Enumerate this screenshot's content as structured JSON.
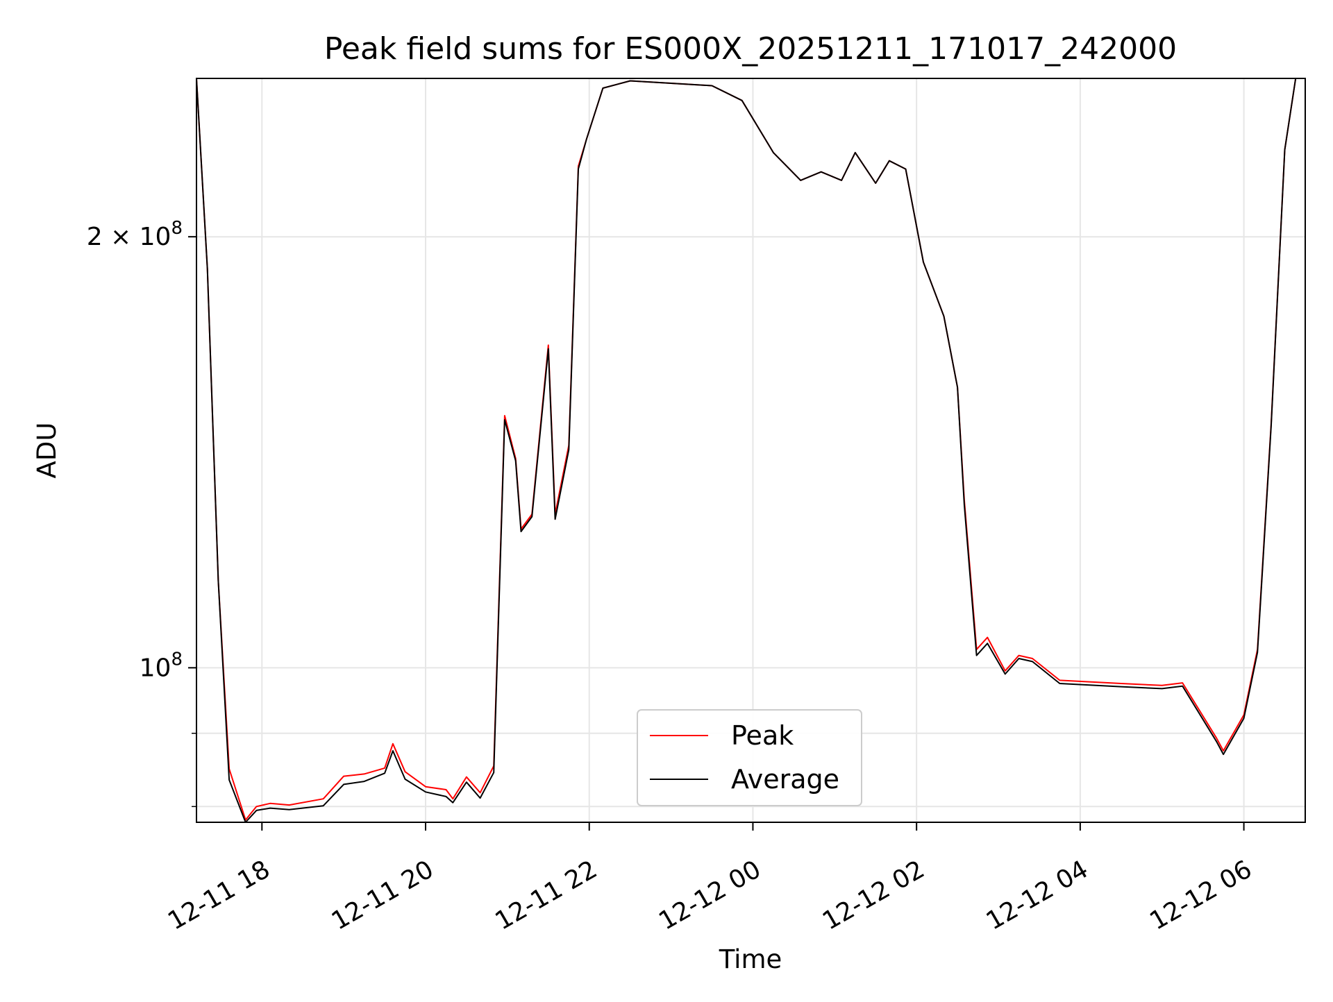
{
  "chart_data": {
    "type": "line",
    "title": "Peak field sums for ES000X_20251211_171017_242000",
    "xlabel": "Time",
    "ylabel": "ADU",
    "y_scale": "log",
    "ylim": [
      78000000,
      258000000
    ],
    "xlim": [
      "2025-12-11T17:12",
      "2025-12-12T06:45"
    ],
    "grid": true,
    "legend_position": "lower-center",
    "x_ticks": [
      {
        "value": "2025-12-11T18:00",
        "label": "12-11 18"
      },
      {
        "value": "2025-12-11T20:00",
        "label": "12-11 20"
      },
      {
        "value": "2025-12-11T22:00",
        "label": "12-11 22"
      },
      {
        "value": "2025-12-12T00:00",
        "label": "12-12 00"
      },
      {
        "value": "2025-12-12T02:00",
        "label": "12-12 02"
      },
      {
        "value": "2025-12-12T04:00",
        "label": "12-12 04"
      },
      {
        "value": "2025-12-12T06:00",
        "label": "12-12 06"
      }
    ],
    "y_ticks_major": [
      {
        "value": 100000000,
        "base": "10",
        "exp": "8",
        "mantissa": ""
      },
      {
        "value": 200000000,
        "base": "10",
        "exp": "8",
        "mantissa": "2 × "
      }
    ],
    "y_ticks_minor": [
      80000000,
      90000000
    ],
    "x": [
      "2025-12-11T17:12",
      "2025-12-11T17:20",
      "2025-12-11T17:28",
      "2025-12-11T17:36",
      "2025-12-11T17:48",
      "2025-12-11T17:56",
      "2025-12-11T18:06",
      "2025-12-11T18:20",
      "2025-12-11T18:45",
      "2025-12-11T19:00",
      "2025-12-11T19:15",
      "2025-12-11T19:30",
      "2025-12-11T19:36",
      "2025-12-11T19:45",
      "2025-12-11T20:00",
      "2025-12-11T20:15",
      "2025-12-11T20:20",
      "2025-12-11T20:30",
      "2025-12-11T20:40",
      "2025-12-11T20:50",
      "2025-12-11T20:58",
      "2025-12-11T21:06",
      "2025-12-11T21:10",
      "2025-12-11T21:18",
      "2025-12-11T21:30",
      "2025-12-11T21:35",
      "2025-12-11T21:45",
      "2025-12-11T21:52",
      "2025-12-11T21:58",
      "2025-12-11T22:10",
      "2025-12-11T22:30",
      "2025-12-11T23:00",
      "2025-12-11T23:30",
      "2025-12-11T23:52",
      "2025-12-12T00:15",
      "2025-12-12T00:35",
      "2025-12-12T00:50",
      "2025-12-12T01:05",
      "2025-12-12T01:15",
      "2025-12-12T01:30",
      "2025-12-12T01:40",
      "2025-12-12T01:52",
      "2025-12-12T02:05",
      "2025-12-12T02:20",
      "2025-12-12T02:30",
      "2025-12-12T02:35",
      "2025-12-12T02:44",
      "2025-12-12T02:52",
      "2025-12-12T03:05",
      "2025-12-12T03:15",
      "2025-12-12T03:25",
      "2025-12-12T03:45",
      "2025-12-12T04:30",
      "2025-12-12T05:00",
      "2025-12-12T05:15",
      "2025-12-12T05:40",
      "2025-12-12T05:45",
      "2025-12-12T06:00",
      "2025-12-12T06:10",
      "2025-12-12T06:20",
      "2025-12-12T06:30",
      "2025-12-12T06:38"
    ],
    "series": [
      {
        "name": "Peak",
        "color": "#ff0000",
        "values": [
          258000000,
          190000000,
          115000000,
          85000000,
          78300000,
          80000000,
          80400000,
          80200000,
          81000000,
          84000000,
          84300000,
          85100000,
          88500000,
          84600000,
          82600000,
          82200000,
          81000000,
          83900000,
          81800000,
          85400000,
          150000000,
          140000000,
          125000000,
          128000000,
          168000000,
          128000000,
          143000000,
          224000000,
          234000000,
          254000000,
          257000000,
          256000000,
          255000000,
          249000000,
          229000000,
          219000000,
          222000000,
          219000000,
          229000000,
          218000000,
          226000000,
          223000000,
          192000000,
          176000000,
          157000000,
          131000000,
          103000000,
          105000000,
          99500000,
          102000000,
          101500000,
          98000000,
          97500000,
          97200000,
          97600000,
          89300000,
          87500000,
          92700000,
          103000000,
          148000000,
          230000000,
          258000000
        ]
      },
      {
        "name": "Average",
        "color": "#000000",
        "values": [
          258000000,
          190000000,
          115000000,
          83500000,
          78000000,
          79500000,
          79800000,
          79600000,
          80100000,
          82900000,
          83300000,
          84400000,
          87500000,
          83600000,
          81900000,
          81300000,
          80500000,
          83200000,
          81100000,
          84500000,
          149000000,
          139500000,
          124500000,
          127500000,
          167000000,
          127000000,
          142000000,
          223000000,
          234000000,
          254000000,
          257000000,
          256000000,
          255000000,
          249000000,
          229000000,
          219000000,
          222000000,
          219000000,
          229000000,
          218000000,
          226000000,
          223000000,
          192000000,
          176000000,
          157000000,
          130000000,
          102000000,
          104000000,
          99000000,
          101500000,
          101000000,
          97500000,
          97000000,
          96700000,
          97100000,
          88800000,
          87000000,
          92200000,
          102500000,
          147500000,
          230000000,
          258000000
        ]
      }
    ]
  }
}
